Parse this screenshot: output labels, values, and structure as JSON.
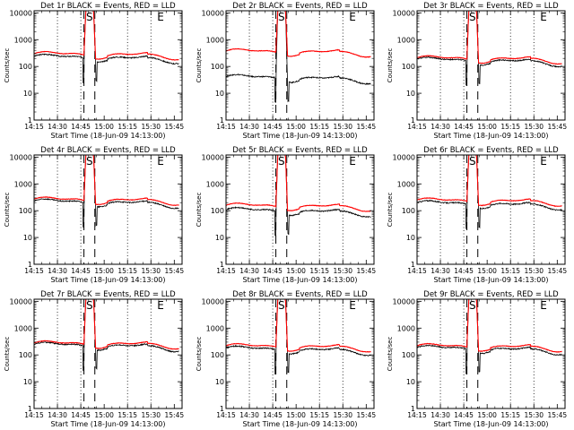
{
  "colors": {
    "events": "#000000",
    "lld": "#ff0000",
    "axes": "#000000",
    "background": "#ffffff"
  },
  "shared": {
    "ylabel": "Counts/sec",
    "xlabel": "Start Time (18-Jun-09 14:13:00)",
    "x_tick_labels": [
      "14:15",
      "14:30",
      "14:45",
      "15:00",
      "15:15",
      "15:30",
      "15:45"
    ],
    "x_tick_minutes": [
      15,
      30,
      45,
      60,
      75,
      90,
      105
    ],
    "y_tick_labels": [
      "1",
      "10",
      "100",
      "1000",
      "10000"
    ],
    "y_tick_values": [
      1,
      10,
      100,
      1000,
      10000
    ],
    "xlim_minutes": [
      15,
      110
    ],
    "ylim": [
      1,
      12000
    ],
    "dotted_minutes": [
      30,
      45,
      75,
      90
    ],
    "dashed_minutes": [
      47,
      54
    ],
    "marker_S": "S",
    "marker_E": "E",
    "marker_S_minute": 49,
    "marker_E_minute": 94
  },
  "chart_data": [
    {
      "type": "line",
      "title": "Det 1r BLACK = Events, RED = LLD",
      "series": [
        {
          "name": "Events",
          "base": 240,
          "peak": 12000
        },
        {
          "name": "LLD",
          "base": 300,
          "peak": 12000
        }
      ]
    },
    {
      "type": "line",
      "title": "Det 2r BLACK = Events, RED = LLD",
      "series": [
        {
          "name": "Events",
          "base": 42,
          "peak": 12000
        },
        {
          "name": "LLD",
          "base": 380,
          "peak": 12000
        }
      ]
    },
    {
      "type": "line",
      "title": "Det 3r BLACK = Events, RED = LLD",
      "series": [
        {
          "name": "Events",
          "base": 185,
          "peak": 12000
        },
        {
          "name": "LLD",
          "base": 210,
          "peak": 12000
        }
      ]
    },
    {
      "type": "line",
      "title": "Det 4r BLACK = Events, RED = LLD",
      "series": [
        {
          "name": "Events",
          "base": 230,
          "peak": 12000
        },
        {
          "name": "LLD",
          "base": 270,
          "peak": 12000
        }
      ]
    },
    {
      "type": "line",
      "title": "Det 5r BLACK = Events, RED = LLD",
      "series": [
        {
          "name": "Events",
          "base": 110,
          "peak": 12000
        },
        {
          "name": "LLD",
          "base": 160,
          "peak": 12000
        }
      ]
    },
    {
      "type": "line",
      "title": "Det 6r BLACK = Events, RED = LLD",
      "series": [
        {
          "name": "Events",
          "base": 200,
          "peak": 12000
        },
        {
          "name": "LLD",
          "base": 250,
          "peak": 12000
        }
      ]
    },
    {
      "type": "line",
      "title": "Det 7r BLACK = Events, RED = LLD",
      "series": [
        {
          "name": "Events",
          "base": 250,
          "peak": 12000
        },
        {
          "name": "LLD",
          "base": 280,
          "peak": 12000
        }
      ]
    },
    {
      "type": "line",
      "title": "Det 8r BLACK = Events, RED = LLD",
      "series": [
        {
          "name": "Events",
          "base": 180,
          "peak": 12000
        },
        {
          "name": "LLD",
          "base": 220,
          "peak": 12000
        }
      ]
    },
    {
      "type": "line",
      "title": "Det 9r BLACK = Events, RED = LLD",
      "series": [
        {
          "name": "Events",
          "base": 190,
          "peak": 12000
        },
        {
          "name": "LLD",
          "base": 220,
          "peak": 12000
        }
      ]
    }
  ]
}
